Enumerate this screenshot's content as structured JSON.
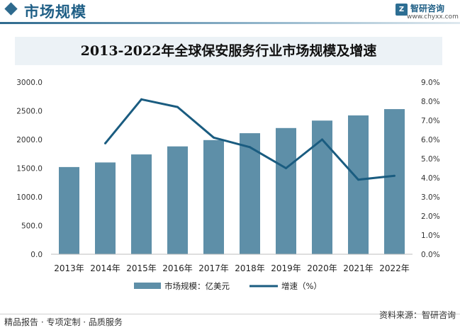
{
  "header": {
    "title": "市场规模",
    "brand_name": "智研咨询",
    "brand_url": "www.chyxx.com",
    "logo_icon": "zhiyan-logo-icon"
  },
  "chart_data": {
    "type": "bar",
    "title": "2013-2022年全球保安服务行业市场规模及增速",
    "categories": [
      "2013年",
      "2014年",
      "2015年",
      "2016年",
      "2017年",
      "2018年",
      "2019年",
      "2020年",
      "2021年",
      "2022年"
    ],
    "series": [
      {
        "name": "市场规模：亿美元",
        "type": "bar",
        "axis": "left",
        "color": "#5e8fa8",
        "values": [
          1520,
          1600,
          1740,
          1880,
          1990,
          2110,
          2200,
          2330,
          2420,
          2530
        ]
      },
      {
        "name": "增速（%）",
        "type": "line",
        "axis": "right",
        "color": "#1a5c80",
        "values": [
          null,
          5.8,
          8.1,
          7.7,
          6.1,
          5.6,
          4.5,
          6.0,
          3.9,
          4.1
        ]
      }
    ],
    "y_left": {
      "min": 0,
      "max": 3000,
      "step": 500,
      "ticks": [
        "0.0",
        "500.0",
        "1000.0",
        "1500.0",
        "2000.0",
        "2500.0",
        "3000.0"
      ]
    },
    "y_right": {
      "min": 0,
      "max": 9,
      "step": 1,
      "ticks": [
        "0.0%",
        "1.0%",
        "2.0%",
        "3.0%",
        "4.0%",
        "5.0%",
        "6.0%",
        "7.0%",
        "8.0%",
        "9.0%"
      ]
    },
    "grid": false,
    "legend_position": "bottom"
  },
  "footer": {
    "left": "精品报告 · 专项定制 · 品质服务",
    "right": "资料来源：智研咨询"
  }
}
